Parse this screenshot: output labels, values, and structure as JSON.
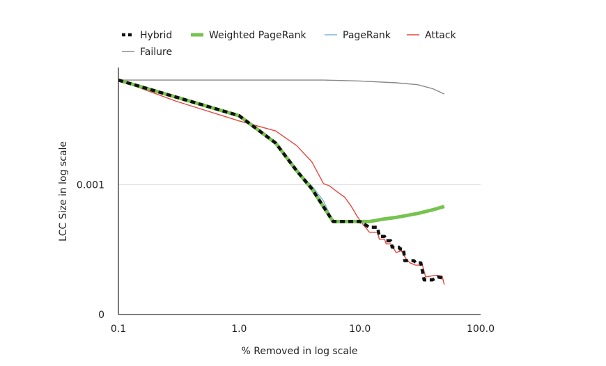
{
  "chart_data": {
    "type": "line",
    "xlabel": "% Removed in log scale",
    "ylabel": "LCC Size in log scale",
    "x_scale": "log",
    "y_scale": "log",
    "x_range": [
      0.1,
      100.0
    ],
    "y_range": [
      0.0001,
      0.008
    ],
    "x_ticks": [
      0.1,
      1.0,
      10.0,
      100.0
    ],
    "x_tick_labels": [
      "0.1",
      "1.0",
      "10.0",
      "100.0"
    ],
    "y_ticks": [
      0.0001,
      0.001
    ],
    "y_tick_labels": [
      "0",
      "0.001"
    ],
    "grid": "horizontal",
    "legend_position": "top-left",
    "series": [
      {
        "name": "Failure",
        "color": "#888888",
        "style": "solid",
        "points": [
          [
            0.1,
            0.0064
          ],
          [
            1.0,
            0.0064
          ],
          [
            5.0,
            0.0064
          ],
          [
            10.0,
            0.0063
          ],
          [
            20.0,
            0.0061
          ],
          [
            30.0,
            0.0059
          ],
          [
            40.0,
            0.0055
          ],
          [
            50.0,
            0.005
          ]
        ]
      },
      {
        "name": "Attack",
        "color": "#e8453c",
        "style": "solid",
        "points": [
          [
            0.1,
            0.0064
          ],
          [
            0.3,
            0.0044
          ],
          [
            1.0,
            0.0031
          ],
          [
            2.0,
            0.0026
          ],
          [
            3.0,
            0.002
          ],
          [
            4.0,
            0.0015
          ],
          [
            5.0,
            0.00102
          ],
          [
            5.6,
            0.00098
          ],
          [
            6.5,
            0.00088
          ],
          [
            7.5,
            0.0008
          ],
          [
            8.5,
            0.00068
          ],
          [
            9.5,
            0.00057
          ],
          [
            10.5,
            0.0005
          ],
          [
            12.0,
            0.00043
          ],
          [
            14.0,
            0.00043
          ],
          [
            14.5,
            0.00038
          ],
          [
            16.0,
            0.00038
          ],
          [
            16.5,
            0.00035
          ],
          [
            18.0,
            0.00035
          ],
          [
            20.0,
            0.0003
          ],
          [
            22.0,
            0.00031
          ],
          [
            24.0,
            0.00027
          ],
          [
            26.0,
            0.00025
          ],
          [
            29.0,
            0.00024
          ],
          [
            33.0,
            0.00024
          ],
          [
            35.0,
            0.000195
          ],
          [
            42.0,
            0.0002
          ],
          [
            48.0,
            0.000198
          ],
          [
            50.0,
            0.00017
          ]
        ]
      },
      {
        "name": "PageRank",
        "color": "#7fb3d5",
        "style": "solid",
        "points": [
          [
            0.1,
            0.0064
          ],
          [
            1.0,
            0.0034
          ],
          [
            2.0,
            0.0021
          ],
          [
            3.0,
            0.00128
          ],
          [
            4.0,
            0.00098
          ],
          [
            5.0,
            0.00075
          ],
          [
            6.0,
            0.00052
          ],
          [
            10.0,
            0.00052
          ],
          [
            11.0,
            0.0005
          ]
        ]
      },
      {
        "name": "Weighted PageRank",
        "color": "#77c34f",
        "style": "thick",
        "points": [
          [
            0.1,
            0.0064
          ],
          [
            1.0,
            0.0034
          ],
          [
            2.0,
            0.0021
          ],
          [
            3.0,
            0.00128
          ],
          [
            4.0,
            0.00093
          ],
          [
            6.0,
            0.00052
          ],
          [
            10.0,
            0.00052
          ],
          [
            12.0,
            0.00052
          ],
          [
            15.0,
            0.00054
          ],
          [
            20.0,
            0.00056
          ],
          [
            30.0,
            0.0006
          ],
          [
            40.0,
            0.00064
          ],
          [
            50.0,
            0.00068
          ]
        ]
      },
      {
        "name": "Hybrid",
        "color": "#111111",
        "style": "dashed",
        "points": [
          [
            0.1,
            0.0064
          ],
          [
            1.0,
            0.0034
          ],
          [
            2.0,
            0.0021
          ],
          [
            3.0,
            0.00128
          ],
          [
            4.0,
            0.00093
          ],
          [
            6.0,
            0.00052
          ],
          [
            10.0,
            0.00052
          ],
          [
            12.0,
            0.00047
          ],
          [
            14.0,
            0.00047
          ],
          [
            14.5,
            0.0004
          ],
          [
            16.0,
            0.0004
          ],
          [
            16.5,
            0.00037
          ],
          [
            18.0,
            0.00037
          ],
          [
            18.5,
            0.00033
          ],
          [
            21.0,
            0.00033
          ],
          [
            21.5,
            0.00032
          ],
          [
            23.0,
            0.00032
          ],
          [
            23.5,
            0.00026
          ],
          [
            28.0,
            0.00026
          ],
          [
            29.0,
            0.00025
          ],
          [
            32.0,
            0.00025
          ],
          [
            34.0,
            0.000185
          ],
          [
            40.0,
            0.000185
          ],
          [
            44.0,
            0.000195
          ],
          [
            50.0,
            0.00019
          ]
        ]
      }
    ],
    "legend_order": [
      "Hybrid",
      "Weighted PageRank",
      "PageRank",
      "Attack",
      "Failure"
    ]
  }
}
